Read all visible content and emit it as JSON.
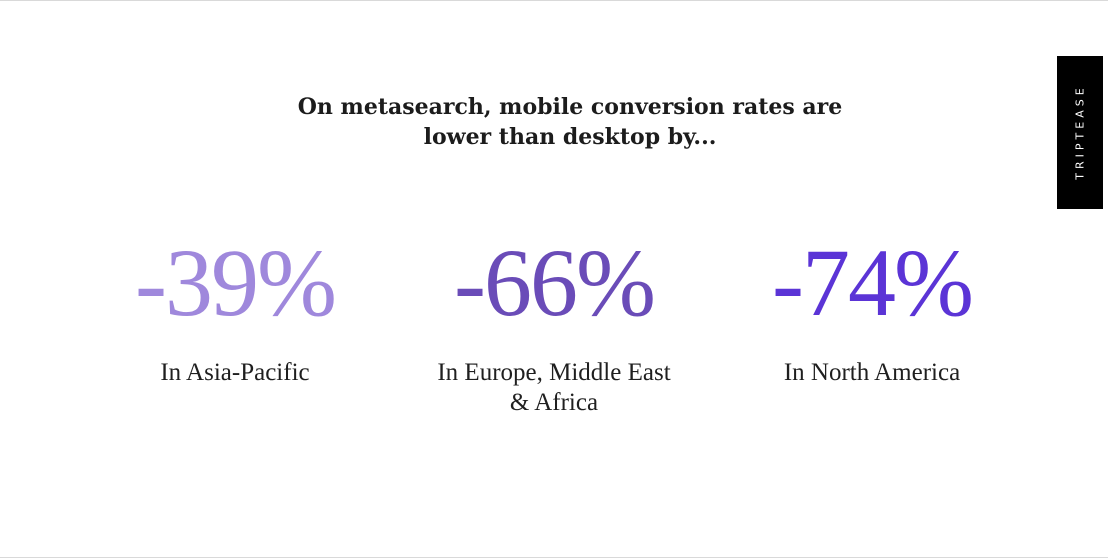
{
  "headline": {
    "line1": "On metasearch, mobile conversion rates are",
    "line2": "lower than desktop by..."
  },
  "stats": [
    {
      "value": "-39%",
      "label_lines": [
        "In Asia-Pacific"
      ],
      "color": "#9f88dc"
    },
    {
      "value": "-66%",
      "label_lines": [
        "In Europe, Middle East",
        "& Africa"
      ],
      "color": "#6a4cb8"
    },
    {
      "value": "-74%",
      "label_lines": [
        "In North America"
      ],
      "color": "#5b34d6"
    }
  ],
  "brand": {
    "name": "TRIPTEASE",
    "tab_color": "#000000",
    "text_color": "#ffffff"
  }
}
